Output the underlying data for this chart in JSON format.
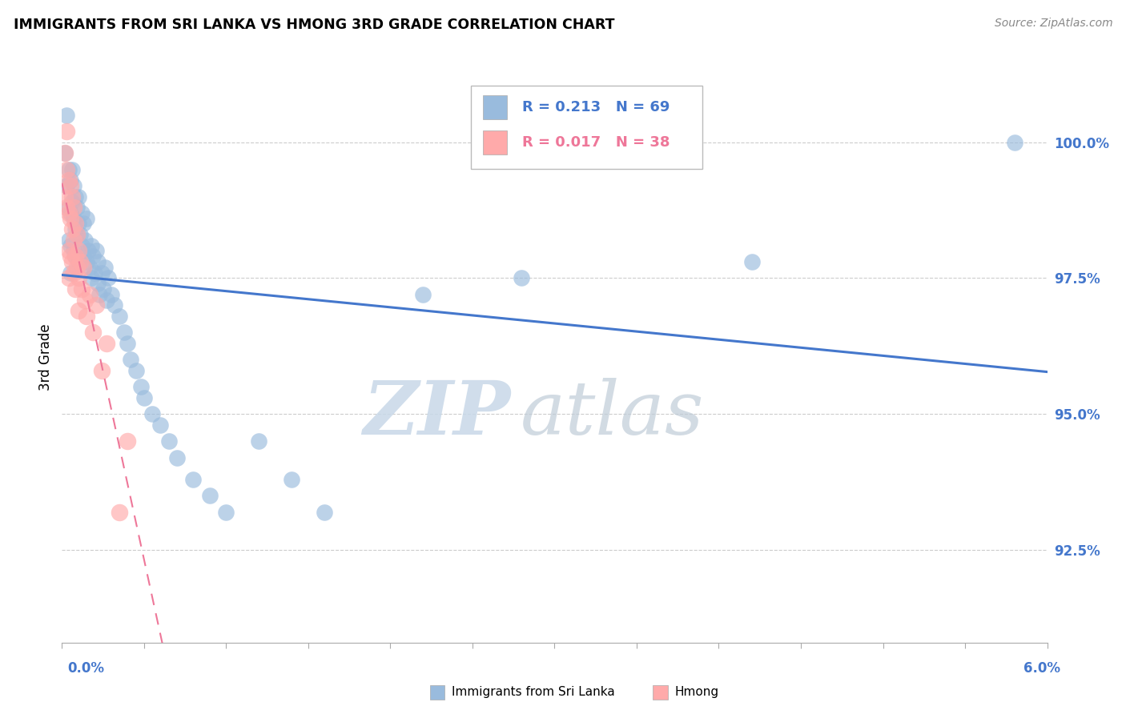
{
  "title": "IMMIGRANTS FROM SRI LANKA VS HMONG 3RD GRADE CORRELATION CHART",
  "source": "Source: ZipAtlas.com",
  "ylabel": "3rd Grade",
  "xmin": 0.0,
  "xmax": 6.0,
  "ymin": 90.8,
  "ymax": 101.3,
  "yticks": [
    92.5,
    95.0,
    97.5,
    100.0
  ],
  "sri_lanka_R": 0.213,
  "sri_lanka_N": 69,
  "hmong_R": 0.017,
  "hmong_N": 38,
  "blue_color": "#99BBDD",
  "pink_color": "#FFAAAA",
  "blue_line_color": "#4477CC",
  "pink_line_color": "#EE7799",
  "legend_label_sri": "Immigrants from Sri Lanka",
  "legend_label_hmong": "Hmong",
  "sri_lanka_x": [
    0.02,
    0.03,
    0.03,
    0.04,
    0.04,
    0.04,
    0.05,
    0.05,
    0.05,
    0.05,
    0.06,
    0.06,
    0.07,
    0.07,
    0.07,
    0.08,
    0.08,
    0.08,
    0.09,
    0.09,
    0.1,
    0.1,
    0.1,
    0.11,
    0.12,
    0.12,
    0.13,
    0.13,
    0.14,
    0.15,
    0.15,
    0.16,
    0.17,
    0.18,
    0.18,
    0.19,
    0.2,
    0.21,
    0.22,
    0.22,
    0.23,
    0.24,
    0.25,
    0.26,
    0.27,
    0.28,
    0.3,
    0.32,
    0.35,
    0.38,
    0.4,
    0.42,
    0.45,
    0.48,
    0.5,
    0.55,
    0.6,
    0.65,
    0.7,
    0.8,
    0.9,
    1.0,
    1.2,
    1.4,
    1.6,
    2.2,
    2.8,
    4.2,
    5.8
  ],
  "sri_lanka_y": [
    99.8,
    100.5,
    99.2,
    99.5,
    98.8,
    98.2,
    99.3,
    98.7,
    98.1,
    97.6,
    99.5,
    98.9,
    99.2,
    98.6,
    98.0,
    99.0,
    98.4,
    97.9,
    98.8,
    98.3,
    99.0,
    98.5,
    97.8,
    98.3,
    98.7,
    98.1,
    98.5,
    97.9,
    98.2,
    98.6,
    97.8,
    98.0,
    97.7,
    98.1,
    97.5,
    97.9,
    97.6,
    98.0,
    97.4,
    97.8,
    97.2,
    97.6,
    97.3,
    97.7,
    97.1,
    97.5,
    97.2,
    97.0,
    96.8,
    96.5,
    96.3,
    96.0,
    95.8,
    95.5,
    95.3,
    95.0,
    94.8,
    94.5,
    94.2,
    93.8,
    93.5,
    93.2,
    94.5,
    93.8,
    93.2,
    97.2,
    97.5,
    97.8,
    100.0
  ],
  "hmong_x": [
    0.02,
    0.02,
    0.03,
    0.03,
    0.03,
    0.04,
    0.04,
    0.04,
    0.04,
    0.05,
    0.05,
    0.05,
    0.06,
    0.06,
    0.06,
    0.07,
    0.07,
    0.07,
    0.08,
    0.08,
    0.08,
    0.09,
    0.09,
    0.1,
    0.1,
    0.1,
    0.11,
    0.12,
    0.13,
    0.14,
    0.15,
    0.17,
    0.19,
    0.21,
    0.24,
    0.27,
    0.35,
    0.4
  ],
  "hmong_y": [
    99.8,
    99.0,
    100.2,
    99.5,
    98.8,
    99.3,
    98.7,
    98.0,
    97.5,
    99.2,
    98.6,
    97.9,
    99.0,
    98.4,
    97.8,
    98.8,
    98.2,
    97.6,
    98.5,
    97.9,
    97.3,
    98.3,
    97.7,
    98.0,
    97.5,
    96.9,
    97.8,
    97.3,
    97.7,
    97.1,
    96.8,
    97.2,
    96.5,
    97.0,
    95.8,
    96.3,
    93.2,
    94.5
  ]
}
